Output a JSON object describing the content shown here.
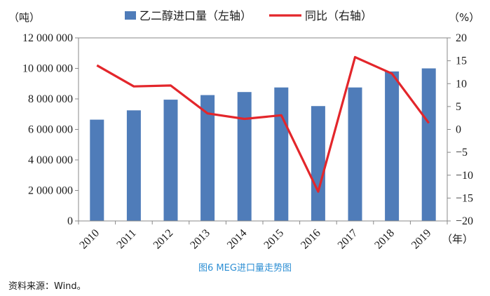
{
  "chart_data": {
    "type": "bar+line",
    "categories": [
      "2010",
      "2011",
      "2012",
      "2013",
      "2014",
      "2015",
      "2016",
      "2017",
      "2018",
      "2019"
    ],
    "series": [
      {
        "name": "乙二醇进口量（左轴）",
        "type": "bar",
        "axis": "left",
        "values": [
          6640000,
          7250000,
          7950000,
          8250000,
          8450000,
          8750000,
          7530000,
          8750000,
          9800000,
          10000000
        ]
      },
      {
        "name": "同比（右轴）",
        "type": "line",
        "axis": "right",
        "values": [
          14.0,
          9.4,
          9.6,
          3.5,
          2.3,
          3.1,
          -13.6,
          15.8,
          12.2,
          1.4
        ]
      }
    ],
    "y_left": {
      "unit": "（吨）",
      "lim": [
        0,
        12000000
      ],
      "ticks": [
        0,
        2000000,
        4000000,
        6000000,
        8000000,
        10000000,
        12000000
      ],
      "tick_labels": [
        "0",
        "2 000 000",
        "4 000 000",
        "6 000 000",
        "8 000 000",
        "10 000 000",
        "12 000 000"
      ]
    },
    "y_right": {
      "unit": "（%）",
      "lim": [
        -20,
        20
      ],
      "ticks": [
        20,
        15,
        10,
        5,
        0,
        -5,
        -10,
        -15,
        -20
      ],
      "tick_labels": [
        "20",
        "15",
        "10",
        "5",
        "0",
        "−5",
        "−10",
        "−15",
        "−20"
      ]
    },
    "x_unit": "（年）",
    "legend_position": "top",
    "grid": false,
    "colors": {
      "bar": "#4f7cb9",
      "line": "#e3262b"
    }
  },
  "caption": "图6  MEG进口量走势图",
  "source": "资料来源：Wind。"
}
